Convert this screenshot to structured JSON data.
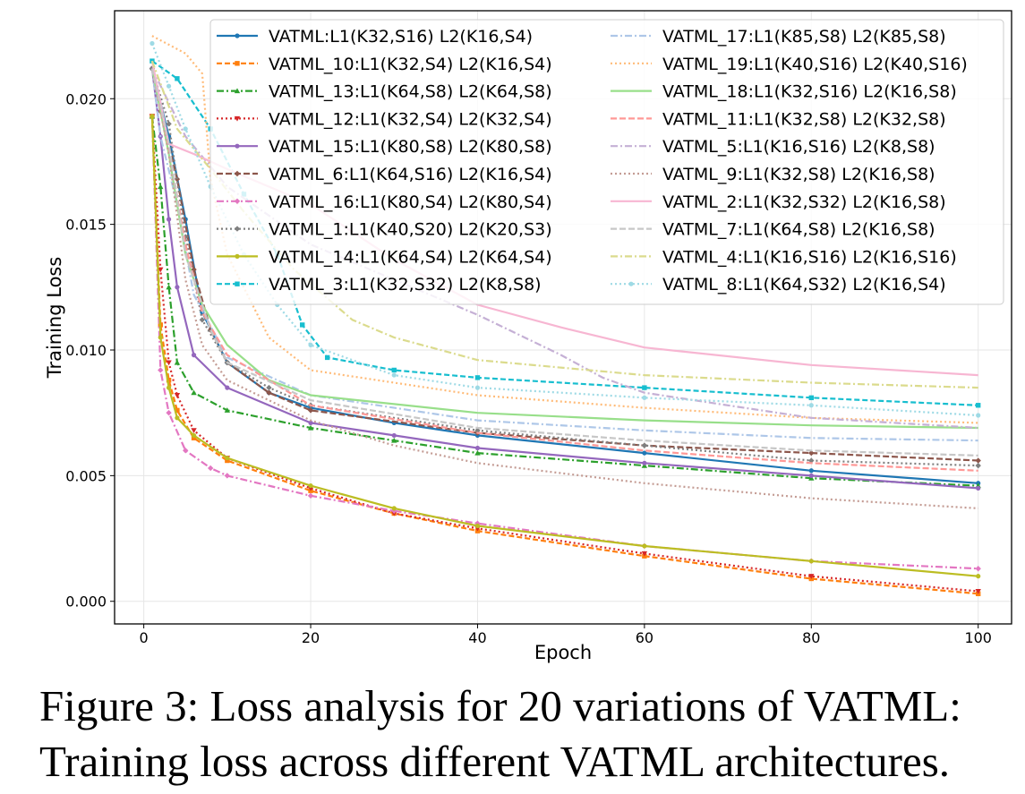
{
  "caption": {
    "line1": "Figure 3: Loss analysis for 20 variations of VATML:",
    "line2": "Training loss across different VATML architectures."
  },
  "chart_data": {
    "type": "line",
    "xlabel": "Epoch",
    "ylabel": "Training Loss",
    "xlim": [
      -3.5,
      104
    ],
    "ylim": [
      -0.0009,
      0.0235
    ],
    "xticks": [
      0,
      20,
      40,
      60,
      80,
      100
    ],
    "xtick_labels": [
      "0",
      "20",
      "40",
      "60",
      "80",
      "100"
    ],
    "yticks": [
      0.0,
      0.005,
      0.01,
      0.015,
      0.02
    ],
    "ytick_labels": [
      "0.000",
      "0.005",
      "0.010",
      "0.015",
      "0.020"
    ],
    "grid": true,
    "legend": "top-right, two columns",
    "series": [
      {
        "name": "VATML:L1(K32,S16) L2(K16,S4)",
        "color": "#1f77b4",
        "dash": "",
        "marker": "circle",
        "points": [
          [
            1,
            0.0212
          ],
          [
            3,
            0.0185
          ],
          [
            5,
            0.0152
          ],
          [
            7,
            0.0115
          ],
          [
            10,
            0.0095
          ],
          [
            15,
            0.0083
          ],
          [
            20,
            0.0077
          ],
          [
            30,
            0.0071
          ],
          [
            40,
            0.0066
          ],
          [
            60,
            0.0059
          ],
          [
            80,
            0.0052
          ],
          [
            100,
            0.0047
          ]
        ]
      },
      {
        "name": "VATML_10:L1(K32,S4) L2(K16,S4)",
        "color": "#ff7f0e",
        "dash": "6 3",
        "marker": "square",
        "points": [
          [
            1,
            0.0193
          ],
          [
            2,
            0.011
          ],
          [
            3,
            0.0088
          ],
          [
            4,
            0.0076
          ],
          [
            6,
            0.0065
          ],
          [
            10,
            0.0056
          ],
          [
            20,
            0.0044
          ],
          [
            30,
            0.0035
          ],
          [
            40,
            0.0028
          ],
          [
            60,
            0.0018
          ],
          [
            80,
            0.0009
          ],
          [
            100,
            0.0003
          ]
        ]
      },
      {
        "name": "VATML_13:L1(K64,S8) L2(K64,S8)",
        "color": "#2ca02c",
        "dash": "8 3 2 3",
        "marker": "triangle",
        "points": [
          [
            1,
            0.0193
          ],
          [
            2,
            0.0165
          ],
          [
            3,
            0.0125
          ],
          [
            4,
            0.0095
          ],
          [
            6,
            0.0083
          ],
          [
            10,
            0.0076
          ],
          [
            20,
            0.0069
          ],
          [
            30,
            0.0064
          ],
          [
            40,
            0.0059
          ],
          [
            60,
            0.0054
          ],
          [
            80,
            0.0049
          ],
          [
            100,
            0.0046
          ]
        ]
      },
      {
        "name": "VATML_12:L1(K32,S4) L2(K32,S4)",
        "color": "#d62728",
        "dash": "2 3",
        "marker": "triangle-down",
        "points": [
          [
            1,
            0.0193
          ],
          [
            2,
            0.0132
          ],
          [
            3,
            0.0095
          ],
          [
            4,
            0.0082
          ],
          [
            6,
            0.0068
          ],
          [
            10,
            0.0057
          ],
          [
            20,
            0.0045
          ],
          [
            30,
            0.0035
          ],
          [
            40,
            0.0029
          ],
          [
            60,
            0.0019
          ],
          [
            80,
            0.001
          ],
          [
            100,
            0.0004
          ]
        ]
      },
      {
        "name": "VATML_15:L1(K80,S8) L2(K80,S8)",
        "color": "#9467bd",
        "dash": "",
        "marker": "circle",
        "points": [
          [
            1,
            0.0212
          ],
          [
            2,
            0.0185
          ],
          [
            3,
            0.0152
          ],
          [
            4,
            0.0125
          ],
          [
            6,
            0.0098
          ],
          [
            10,
            0.0085
          ],
          [
            20,
            0.0071
          ],
          [
            30,
            0.0066
          ],
          [
            40,
            0.0061
          ],
          [
            60,
            0.0055
          ],
          [
            80,
            0.005
          ],
          [
            100,
            0.0045
          ]
        ]
      },
      {
        "name": "VATML_6:L1(K64,S16) L2(K16,S4)",
        "color": "#8c564b",
        "dash": "7 3",
        "marker": "diamond",
        "points": [
          [
            1,
            0.0212
          ],
          [
            2,
            0.0195
          ],
          [
            4,
            0.0168
          ],
          [
            6,
            0.0132
          ],
          [
            8,
            0.0108
          ],
          [
            10,
            0.0095
          ],
          [
            15,
            0.0083
          ],
          [
            20,
            0.0076
          ],
          [
            40,
            0.0067
          ],
          [
            60,
            0.0062
          ],
          [
            80,
            0.0059
          ],
          [
            100,
            0.0056
          ]
        ]
      },
      {
        "name": "VATML_16:L1(K80,S4) L2(K80,S4)",
        "color": "#e377c2",
        "dash": "8 3 2 3",
        "marker": "diamond",
        "points": [
          [
            1,
            0.0193
          ],
          [
            2,
            0.0092
          ],
          [
            3,
            0.0075
          ],
          [
            5,
            0.006
          ],
          [
            8,
            0.0053
          ],
          [
            10,
            0.005
          ],
          [
            20,
            0.0042
          ],
          [
            30,
            0.0036
          ],
          [
            40,
            0.0031
          ],
          [
            60,
            0.0022
          ],
          [
            80,
            0.0016
          ],
          [
            100,
            0.0013
          ]
        ]
      },
      {
        "name": "VATML_1:L1(K40,S20) L2(K20,S3)",
        "color": "#7f7f7f",
        "dash": "2 3",
        "marker": "diamond",
        "points": [
          [
            1,
            0.0212
          ],
          [
            3,
            0.019
          ],
          [
            5,
            0.0145
          ],
          [
            7,
            0.0112
          ],
          [
            10,
            0.0095
          ],
          [
            15,
            0.0085
          ],
          [
            20,
            0.0078
          ],
          [
            40,
            0.0068
          ],
          [
            60,
            0.0062
          ],
          [
            80,
            0.0056
          ],
          [
            100,
            0.0054
          ]
        ]
      },
      {
        "name": "VATML_14:L1(K64,S4) L2(K64,S4)",
        "color": "#bcbd22",
        "dash": "",
        "marker": "circle",
        "points": [
          [
            1,
            0.0193
          ],
          [
            2,
            0.0105
          ],
          [
            3,
            0.0085
          ],
          [
            4,
            0.0073
          ],
          [
            6,
            0.0066
          ],
          [
            10,
            0.0057
          ],
          [
            20,
            0.0046
          ],
          [
            30,
            0.0037
          ],
          [
            40,
            0.003
          ],
          [
            60,
            0.0022
          ],
          [
            80,
            0.0016
          ],
          [
            100,
            0.001
          ]
        ]
      },
      {
        "name": "VATML_3:L1(K32,S32) L2(K8,S8)",
        "color": "#17becf",
        "dash": "6 3",
        "marker": "square",
        "points": [
          [
            1,
            0.0215
          ],
          [
            4,
            0.0208
          ],
          [
            8,
            0.0188
          ],
          [
            12,
            0.0162
          ],
          [
            16,
            0.0138
          ],
          [
            19,
            0.011
          ],
          [
            22,
            0.0097
          ],
          [
            30,
            0.0092
          ],
          [
            40,
            0.0089
          ],
          [
            60,
            0.0085
          ],
          [
            80,
            0.0081
          ],
          [
            100,
            0.0078
          ]
        ]
      },
      {
        "name": "VATML_17:L1(K85,S8) L2(K85,S8)",
        "color": "#aec7e8",
        "dash": "8 3 2 3",
        "marker": "none",
        "points": [
          [
            1,
            0.0212
          ],
          [
            2,
            0.0185
          ],
          [
            4,
            0.0158
          ],
          [
            6,
            0.0122
          ],
          [
            10,
            0.0097
          ],
          [
            20,
            0.0082
          ],
          [
            40,
            0.0072
          ],
          [
            60,
            0.0068
          ],
          [
            80,
            0.0065
          ],
          [
            100,
            0.0064
          ]
        ]
      },
      {
        "name": "VATML_19:L1(K40,S16) L2(K40,S16)",
        "color": "#ffbb78",
        "dash": "2 3",
        "marker": "none",
        "points": [
          [
            1,
            0.0225
          ],
          [
            5,
            0.0218
          ],
          [
            7,
            0.021
          ],
          [
            8,
            0.0168
          ],
          [
            10,
            0.0138
          ],
          [
            15,
            0.0105
          ],
          [
            20,
            0.0092
          ],
          [
            40,
            0.0082
          ],
          [
            60,
            0.0077
          ],
          [
            80,
            0.0073
          ],
          [
            100,
            0.0071
          ]
        ]
      },
      {
        "name": "VATML_18:L1(K32,S16) L2(K16,S8)",
        "color": "#98df8a",
        "dash": "",
        "marker": "none",
        "points": [
          [
            1,
            0.0212
          ],
          [
            3,
            0.0178
          ],
          [
            5,
            0.0138
          ],
          [
            7,
            0.0118
          ],
          [
            10,
            0.0102
          ],
          [
            15,
            0.0088
          ],
          [
            20,
            0.0082
          ],
          [
            40,
            0.0075
          ],
          [
            60,
            0.0072
          ],
          [
            80,
            0.007
          ],
          [
            100,
            0.0069
          ]
        ]
      },
      {
        "name": "VATML_11:L1(K32,S8) L2(K32,S8)",
        "color": "#ff9896",
        "dash": "7 3",
        "marker": "none",
        "points": [
          [
            1,
            0.0212
          ],
          [
            3,
            0.018
          ],
          [
            5,
            0.0142
          ],
          [
            7,
            0.0115
          ],
          [
            10,
            0.0098
          ],
          [
            20,
            0.0078
          ],
          [
            40,
            0.0067
          ],
          [
            60,
            0.006
          ],
          [
            80,
            0.0055
          ],
          [
            100,
            0.0052
          ]
        ]
      },
      {
        "name": "VATML_5:L1(K16,S16) L2(K8,S8)",
        "color": "#c5b0d5",
        "dash": "8 3 2 3",
        "marker": "none",
        "points": [
          [
            1,
            0.0212
          ],
          [
            5,
            0.0185
          ],
          [
            10,
            0.0165
          ],
          [
            20,
            0.0142
          ],
          [
            30,
            0.0128
          ],
          [
            40,
            0.0114
          ],
          [
            50,
            0.0098
          ],
          [
            55,
            0.0089
          ],
          [
            60,
            0.0083
          ],
          [
            70,
            0.0078
          ],
          [
            80,
            0.0073
          ],
          [
            100,
            0.0069
          ]
        ]
      },
      {
        "name": "VATML_9:L1(K32,S8) L2(K16,S8)",
        "color": "#c49c94",
        "dash": "2 3",
        "marker": "none",
        "points": [
          [
            1,
            0.0212
          ],
          [
            3,
            0.0178
          ],
          [
            5,
            0.0128
          ],
          [
            7,
            0.0102
          ],
          [
            10,
            0.0088
          ],
          [
            20,
            0.0072
          ],
          [
            30,
            0.0062
          ],
          [
            40,
            0.0055
          ],
          [
            60,
            0.0047
          ],
          [
            80,
            0.0041
          ],
          [
            100,
            0.0037
          ]
        ]
      },
      {
        "name": "VATML_2:L1(K32,S32) L2(K16,S8)",
        "color": "#f7b6d2",
        "dash": "",
        "marker": "none",
        "points": [
          [
            1,
            0.0215
          ],
          [
            3,
            0.0182
          ],
          [
            6,
            0.0178
          ],
          [
            10,
            0.0172
          ],
          [
            20,
            0.0158
          ],
          [
            30,
            0.0136
          ],
          [
            40,
            0.0118
          ],
          [
            50,
            0.0109
          ],
          [
            60,
            0.0101
          ],
          [
            80,
            0.0094
          ],
          [
            100,
            0.009
          ]
        ]
      },
      {
        "name": "VATML_7:L1(K64,S8) L2(K16,S8)",
        "color": "#c7c7c7",
        "dash": "7 3",
        "marker": "none",
        "points": [
          [
            1,
            0.0212
          ],
          [
            3,
            0.0182
          ],
          [
            5,
            0.0138
          ],
          [
            8,
            0.0108
          ],
          [
            10,
            0.0095
          ],
          [
            20,
            0.008
          ],
          [
            40,
            0.0069
          ],
          [
            60,
            0.0064
          ],
          [
            80,
            0.006
          ],
          [
            100,
            0.0058
          ]
        ]
      },
      {
        "name": "VATML_4:L1(K16,S16) L2(K16,S16)",
        "color": "#dbdb8d",
        "dash": "8 3 2 3",
        "marker": "none",
        "points": [
          [
            1,
            0.0215
          ],
          [
            4,
            0.0188
          ],
          [
            8,
            0.0172
          ],
          [
            12,
            0.0155
          ],
          [
            18,
            0.0132
          ],
          [
            25,
            0.0112
          ],
          [
            30,
            0.0105
          ],
          [
            40,
            0.0096
          ],
          [
            60,
            0.009
          ],
          [
            80,
            0.0087
          ],
          [
            100,
            0.0085
          ]
        ]
      },
      {
        "name": "VATML_8:L1(K64,S32) L2(K16,S4)",
        "color": "#9edae5",
        "dash": "2 3",
        "marker": "circle",
        "points": [
          [
            1,
            0.0222
          ],
          [
            3,
            0.0205
          ],
          [
            5,
            0.0188
          ],
          [
            8,
            0.0165
          ],
          [
            12,
            0.0138
          ],
          [
            16,
            0.0118
          ],
          [
            20,
            0.0102
          ],
          [
            30,
            0.009
          ],
          [
            40,
            0.0085
          ],
          [
            60,
            0.0081
          ],
          [
            80,
            0.0078
          ],
          [
            100,
            0.0074
          ]
        ]
      }
    ]
  }
}
